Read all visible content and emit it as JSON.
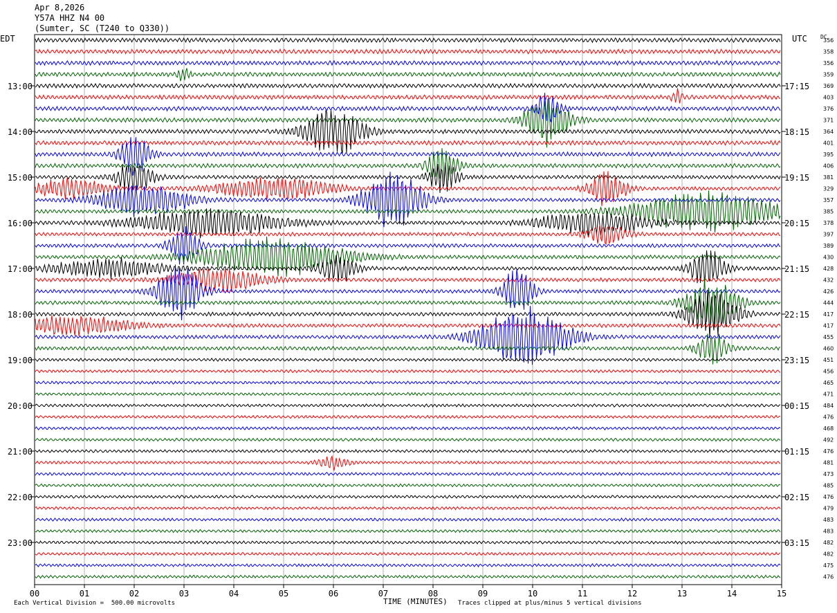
{
  "header": {
    "date": "Apr 8,2026",
    "station": "Y57A HHZ N4 00",
    "location": "(Sumter, SC (T240 to Q330))"
  },
  "axes": {
    "left_label": "EDT",
    "right_label": "UTC",
    "dc_label": "DC",
    "xlabel": "TIME (MINUTES)"
  },
  "footer": {
    "scale_note": "Each Vertical Division =  500.00 microvolts",
    "clip_note": "Traces clipped at plus/minus 5 vertical divisions"
  },
  "colors": {
    "trace_cycle": [
      "#000000",
      "#ff0000",
      "#0000ff",
      "#006400"
    ],
    "grid": "#808080"
  },
  "chart_data": {
    "type": "line",
    "subtype": "helicorder",
    "x_ticks": [
      "00",
      "01",
      "02",
      "03",
      "04",
      "05",
      "06",
      "07",
      "08",
      "09",
      "10",
      "11",
      "12",
      "13",
      "14",
      "15"
    ],
    "xlim": [
      0,
      15
    ],
    "rows": 48,
    "minutes_per_row": 15,
    "edt_ticks": [
      {
        "row": 4,
        "label": "13:00"
      },
      {
        "row": 8,
        "label": "14:00"
      },
      {
        "row": 12,
        "label": "15:00"
      },
      {
        "row": 16,
        "label": "16:00"
      },
      {
        "row": 20,
        "label": "17:00"
      },
      {
        "row": 24,
        "label": "18:00"
      },
      {
        "row": 28,
        "label": "19:00"
      },
      {
        "row": 32,
        "label": "20:00"
      },
      {
        "row": 36,
        "label": "21:00"
      },
      {
        "row": 40,
        "label": "22:00"
      },
      {
        "row": 44,
        "label": "23:00"
      }
    ],
    "utc_ticks": [
      {
        "row": 4,
        "label": "17:15"
      },
      {
        "row": 8,
        "label": "18:15"
      },
      {
        "row": 12,
        "label": "19:15"
      },
      {
        "row": 16,
        "label": "20:15"
      },
      {
        "row": 20,
        "label": "21:15"
      },
      {
        "row": 24,
        "label": "22:15"
      },
      {
        "row": 28,
        "label": "23:15"
      },
      {
        "row": 32,
        "label": "00:15"
      },
      {
        "row": 36,
        "label": "01:15"
      },
      {
        "row": 40,
        "label": "02:15"
      },
      {
        "row": 44,
        "label": "03:15"
      }
    ],
    "dc_offsets": [
      356,
      358,
      356,
      359,
      369,
      403,
      376,
      371,
      364,
      401,
      395,
      406,
      381,
      329,
      357,
      385,
      378,
      397,
      389,
      430,
      428,
      432,
      426,
      444,
      417,
      417,
      455,
      460,
      451,
      456,
      465,
      471,
      484,
      476,
      468,
      492,
      476,
      481,
      473,
      485,
      476,
      479,
      483,
      483,
      482,
      482,
      475,
      476
    ],
    "events": [
      {
        "row": 3,
        "minute": 3.0,
        "amp": 0.6,
        "dur": 0.2
      },
      {
        "row": 5,
        "minute": 12.9,
        "amp": 0.7,
        "dur": 0.15
      },
      {
        "row": 6,
        "minute": 10.3,
        "amp": 2.0,
        "dur": 0.3
      },
      {
        "row": 7,
        "minute": 10.3,
        "amp": 2.5,
        "dur": 0.6
      },
      {
        "row": 8,
        "minute": 6.0,
        "amp": 2.5,
        "dur": 0.8
      },
      {
        "row": 10,
        "minute": 2.0,
        "amp": 2.2,
        "dur": 0.4
      },
      {
        "row": 11,
        "minute": 8.2,
        "amp": 1.8,
        "dur": 0.4
      },
      {
        "row": 12,
        "minute": 2.0,
        "amp": 1.6,
        "dur": 0.5
      },
      {
        "row": 12,
        "minute": 8.2,
        "amp": 1.6,
        "dur": 0.4
      },
      {
        "row": 13,
        "minute": 0.7,
        "amp": 1.0,
        "dur": 1.0
      },
      {
        "row": 13,
        "minute": 4.8,
        "amp": 1.2,
        "dur": 1.5
      },
      {
        "row": 13,
        "minute": 11.5,
        "amp": 1.8,
        "dur": 0.5
      },
      {
        "row": 14,
        "minute": 2.2,
        "amp": 1.8,
        "dur": 1.2
      },
      {
        "row": 14,
        "minute": 7.2,
        "amp": 3.0,
        "dur": 0.8
      },
      {
        "row": 15,
        "minute": 13.5,
        "amp": 2.0,
        "dur": 2.0
      },
      {
        "row": 16,
        "minute": 3.5,
        "amp": 1.4,
        "dur": 2.0
      },
      {
        "row": 16,
        "minute": 11.2,
        "amp": 1.2,
        "dur": 1.5
      },
      {
        "row": 17,
        "minute": 11.5,
        "amp": 1.2,
        "dur": 0.5
      },
      {
        "row": 18,
        "minute": 3.0,
        "amp": 2.0,
        "dur": 0.4
      },
      {
        "row": 19,
        "minute": 4.8,
        "amp": 2.0,
        "dur": 2.0
      },
      {
        "row": 20,
        "minute": 1.5,
        "amp": 1.0,
        "dur": 1.5
      },
      {
        "row": 20,
        "minute": 6.1,
        "amp": 1.6,
        "dur": 0.5
      },
      {
        "row": 20,
        "minute": 13.5,
        "amp": 2.0,
        "dur": 0.5
      },
      {
        "row": 21,
        "minute": 3.7,
        "amp": 1.2,
        "dur": 1.2
      },
      {
        "row": 22,
        "minute": 2.9,
        "amp": 2.8,
        "dur": 0.6
      },
      {
        "row": 22,
        "minute": 9.7,
        "amp": 2.5,
        "dur": 0.4
      },
      {
        "row": 23,
        "minute": 13.6,
        "amp": 2.4,
        "dur": 0.7
      },
      {
        "row": 24,
        "minute": 13.6,
        "amp": 2.4,
        "dur": 0.7
      },
      {
        "row": 25,
        "minute": 0.8,
        "amp": 1.0,
        "dur": 1.5
      },
      {
        "row": 26,
        "minute": 9.8,
        "amp": 3.0,
        "dur": 1.2
      },
      {
        "row": 27,
        "minute": 13.6,
        "amp": 1.6,
        "dur": 0.4
      },
      {
        "row": 37,
        "minute": 6.0,
        "amp": 0.7,
        "dur": 0.4
      }
    ]
  }
}
